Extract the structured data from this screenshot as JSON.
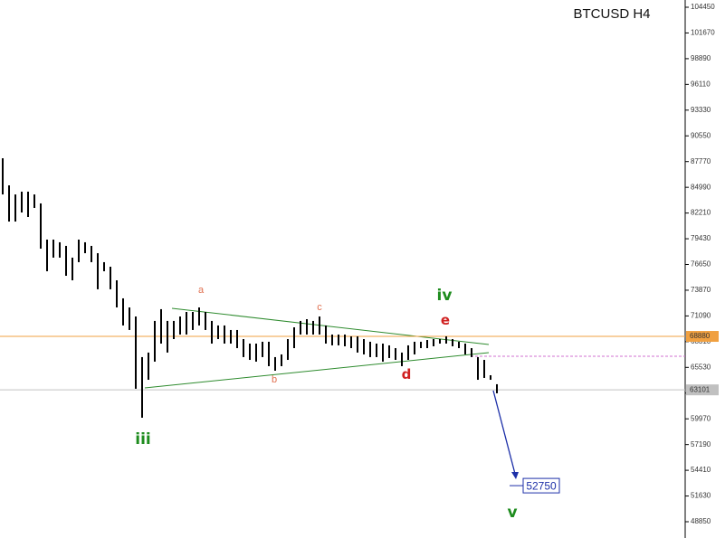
{
  "chart_data": {
    "type": "range-bar",
    "title": "BTCUSD H4",
    "ylim": [
      47092,
      105232
    ],
    "yticks": [
      104450,
      101670,
      98890,
      96110,
      93330,
      90550,
      87770,
      84990,
      82210,
      79430,
      76650,
      73870,
      71090,
      68310,
      65530,
      62750,
      59970,
      57190,
      54410,
      51630,
      48850
    ],
    "color": "#000000",
    "high": [
      88130,
      85200,
      84220,
      84520,
      84520,
      84220,
      83250,
      79340,
      79340,
      79050,
      78660,
      77390,
      79340,
      79050,
      78660,
      77870,
      76900,
      76410,
      74940,
      72990,
      72010,
      71030,
      66640,
      67130,
      70550,
      71820,
      70550,
      70550,
      71030,
      71520,
      71520,
      72010,
      71520,
      70550,
      70060,
      70060,
      69570,
      69570,
      68590,
      68100,
      68100,
      68300,
      68300,
      66640,
      66930,
      68590,
      69860,
      70550,
      70740,
      70550,
      71030,
      70060,
      69080,
      69080,
      69080,
      68880,
      68880,
      68590,
      68300,
      68100,
      68100,
      67910,
      67610,
      67130,
      67910,
      68300,
      68300,
      68490,
      68590,
      68590,
      68880,
      68590,
      68300,
      68100,
      67610,
      66640,
      66340,
      64680,
      63710
    ],
    "low": [
      84220,
      81290,
      81290,
      82270,
      81780,
      82760,
      78360,
      75920,
      77390,
      77390,
      75430,
      74940,
      76900,
      77870,
      76900,
      73970,
      75920,
      73970,
      72010,
      70060,
      69570,
      63220,
      60090,
      64190,
      66150,
      68100,
      67130,
      68590,
      69080,
      69080,
      69570,
      70060,
      69570,
      68100,
      68590,
      68100,
      68100,
      67610,
      66640,
      66340,
      66150,
      66640,
      65660,
      65170,
      65660,
      66340,
      67610,
      69080,
      69080,
      69080,
      69080,
      68100,
      67910,
      67910,
      67810,
      67610,
      67130,
      66930,
      66640,
      66640,
      66150,
      66540,
      66340,
      65660,
      66340,
      66930,
      67610,
      67610,
      67810,
      68100,
      68100,
      67810,
      67610,
      66930,
      66640,
      64190,
      64390,
      64190,
      62730
    ],
    "levels": [
      {
        "value": 68880,
        "label": "68880",
        "color": "#f0a040"
      },
      {
        "value": 63101,
        "label": "63101",
        "color": "#c0c0c0"
      },
      {
        "value": 66730,
        "color": "#d070d0"
      }
    ],
    "target": {
      "value": 52750,
      "label": "52750",
      "color": "#1c2fa8"
    },
    "annotations": [
      "a",
      "b",
      "c",
      "d",
      "e",
      "iii",
      "iv",
      "v"
    ]
  }
}
